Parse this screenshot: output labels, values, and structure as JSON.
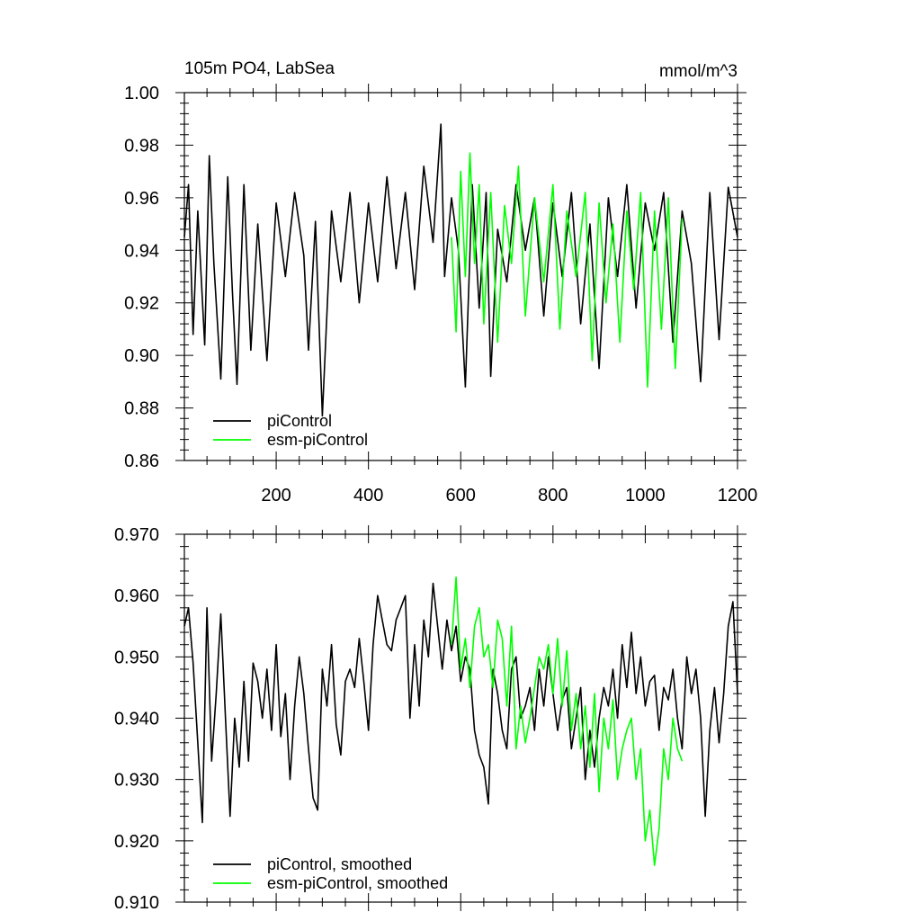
{
  "chart_data": [
    {
      "type": "line",
      "title": "105m PO4, LabSea",
      "units": "mmol/m^3",
      "xlim": [
        1,
        1200
      ],
      "ylim": [
        0.86,
        1.0
      ],
      "x_ticks": [
        200,
        400,
        600,
        800,
        1000,
        1200
      ],
      "x_tick_labels": [
        "200",
        "400",
        "600",
        "800",
        "1000",
        "1200"
      ],
      "y_ticks": [
        0.86,
        0.88,
        0.9,
        0.92,
        0.94,
        0.96,
        0.98,
        1.0
      ],
      "y_tick_labels": [
        "0.86",
        "0.88",
        "0.90",
        "0.92",
        "0.94",
        "0.96",
        "0.98",
        "1.00"
      ],
      "grid": false,
      "legend_position": "bottom-left",
      "series": [
        {
          "name": "piControl",
          "color": "#000000",
          "x": [
            1,
            10,
            20,
            30,
            45,
            55,
            65,
            80,
            95,
            105,
            115,
            130,
            145,
            160,
            180,
            200,
            220,
            240,
            260,
            270,
            285,
            300,
            320,
            340,
            360,
            380,
            400,
            420,
            440,
            460,
            480,
            500,
            520,
            540,
            557,
            565,
            580,
            595,
            610,
            625,
            640,
            655,
            665,
            680,
            700,
            720,
            740,
            760,
            780,
            800,
            820,
            840,
            860,
            880,
            900,
            920,
            940,
            960,
            980,
            1000,
            1020,
            1040,
            1060,
            1080,
            1100,
            1120,
            1140,
            1160,
            1180,
            1200
          ],
          "y": [
            0.945,
            0.965,
            0.908,
            0.955,
            0.904,
            0.976,
            0.935,
            0.891,
            0.968,
            0.925,
            0.889,
            0.965,
            0.902,
            0.95,
            0.898,
            0.958,
            0.93,
            0.962,
            0.938,
            0.902,
            0.951,
            0.877,
            0.955,
            0.928,
            0.962,
            0.92,
            0.958,
            0.928,
            0.968,
            0.933,
            0.962,
            0.925,
            0.972,
            0.943,
            0.988,
            0.93,
            0.96,
            0.94,
            0.888,
            0.965,
            0.918,
            0.962,
            0.892,
            0.948,
            0.928,
            0.965,
            0.94,
            0.96,
            0.915,
            0.958,
            0.93,
            0.962,
            0.912,
            0.95,
            0.895,
            0.96,
            0.93,
            0.965,
            0.918,
            0.958,
            0.94,
            0.962,
            0.905,
            0.955,
            0.935,
            0.89,
            0.962,
            0.906,
            0.964,
            0.945
          ]
        },
        {
          "name": "esm-piControl",
          "color": "#00ff00",
          "x": [
            580,
            590,
            600,
            610,
            620,
            630,
            640,
            650,
            665,
            680,
            695,
            710,
            725,
            740,
            760,
            780,
            800,
            815,
            830,
            850,
            870,
            885,
            900,
            915,
            930,
            945,
            960,
            975,
            990,
            1005,
            1020,
            1035,
            1050,
            1065,
            1080
          ],
          "y": [
            0.945,
            0.909,
            0.97,
            0.93,
            0.977,
            0.935,
            0.965,
            0.912,
            0.962,
            0.905,
            0.957,
            0.935,
            0.972,
            0.915,
            0.96,
            0.928,
            0.965,
            0.91,
            0.955,
            0.93,
            0.962,
            0.898,
            0.958,
            0.92,
            0.95,
            0.905,
            0.955,
            0.925,
            0.962,
            0.888,
            0.955,
            0.91,
            0.96,
            0.895,
            0.952
          ]
        }
      ]
    },
    {
      "type": "line",
      "xlim": [
        1,
        1200
      ],
      "ylim": [
        0.91,
        0.97
      ],
      "x_ticks": [
        200,
        400,
        600,
        800,
        1000,
        1200
      ],
      "y_ticks": [
        0.91,
        0.92,
        0.93,
        0.94,
        0.95,
        0.96,
        0.97
      ],
      "y_tick_labels": [
        "0.910",
        "0.920",
        "0.930",
        "0.940",
        "0.950",
        "0.960",
        "0.970"
      ],
      "grid": false,
      "legend_position": "bottom-left",
      "series": [
        {
          "name": "piControl, smoothed",
          "color": "#000000",
          "x": [
            1,
            10,
            20,
            30,
            40,
            50,
            60,
            70,
            80,
            90,
            100,
            110,
            120,
            130,
            140,
            150,
            160,
            170,
            180,
            190,
            200,
            210,
            220,
            230,
            240,
            250,
            260,
            270,
            280,
            290,
            300,
            310,
            320,
            330,
            340,
            350,
            360,
            370,
            380,
            390,
            400,
            410,
            420,
            430,
            440,
            450,
            460,
            470,
            480,
            490,
            500,
            510,
            520,
            530,
            540,
            550,
            560,
            570,
            580,
            590,
            600,
            610,
            620,
            630,
            640,
            650,
            660,
            670,
            680,
            690,
            700,
            710,
            720,
            730,
            740,
            750,
            760,
            770,
            780,
            790,
            800,
            810,
            820,
            830,
            840,
            850,
            860,
            870,
            880,
            890,
            900,
            910,
            920,
            930,
            940,
            950,
            960,
            970,
            980,
            990,
            1000,
            1010,
            1020,
            1030,
            1040,
            1050,
            1060,
            1070,
            1080,
            1090,
            1100,
            1110,
            1120,
            1130,
            1140,
            1150,
            1160,
            1170,
            1180,
            1190,
            1200
          ],
          "y": [
            0.955,
            0.958,
            0.949,
            0.936,
            0.923,
            0.958,
            0.933,
            0.944,
            0.957,
            0.94,
            0.924,
            0.94,
            0.932,
            0.946,
            0.933,
            0.949,
            0.946,
            0.94,
            0.948,
            0.938,
            0.952,
            0.937,
            0.944,
            0.93,
            0.942,
            0.95,
            0.944,
            0.935,
            0.927,
            0.925,
            0.948,
            0.942,
            0.952,
            0.939,
            0.934,
            0.946,
            0.948,
            0.945,
            0.953,
            0.946,
            0.938,
            0.952,
            0.96,
            0.956,
            0.952,
            0.951,
            0.956,
            0.958,
            0.96,
            0.94,
            0.952,
            0.942,
            0.956,
            0.95,
            0.962,
            0.955,
            0.948,
            0.956,
            0.951,
            0.955,
            0.946,
            0.95,
            0.948,
            0.938,
            0.934,
            0.932,
            0.926,
            0.948,
            0.944,
            0.938,
            0.935,
            0.948,
            0.95,
            0.94,
            0.942,
            0.945,
            0.938,
            0.948,
            0.942,
            0.95,
            0.944,
            0.938,
            0.943,
            0.945,
            0.935,
            0.94,
            0.945,
            0.93,
            0.938,
            0.932,
            0.94,
            0.945,
            0.942,
            0.948,
            0.94,
            0.952,
            0.945,
            0.954,
            0.944,
            0.95,
            0.942,
            0.946,
            0.947,
            0.938,
            0.945,
            0.943,
            0.948,
            0.94,
            0.935,
            0.95,
            0.944,
            0.948,
            0.94,
            0.924,
            0.938,
            0.945,
            0.936,
            0.944,
            0.955,
            0.959,
            0.944
          ]
        },
        {
          "name": "esm-piControl, smoothed",
          "color": "#00ff00",
          "x": [
            580,
            590,
            600,
            610,
            620,
            630,
            640,
            650,
            660,
            670,
            680,
            690,
            700,
            710,
            720,
            730,
            740,
            750,
            760,
            770,
            780,
            790,
            800,
            810,
            820,
            830,
            840,
            850,
            860,
            870,
            880,
            890,
            900,
            910,
            920,
            930,
            940,
            950,
            960,
            970,
            980,
            990,
            1000,
            1010,
            1020,
            1030,
            1040,
            1050,
            1060,
            1070,
            1080
          ],
          "y": [
            0.952,
            0.963,
            0.948,
            0.953,
            0.945,
            0.955,
            0.958,
            0.95,
            0.952,
            0.945,
            0.956,
            0.953,
            0.942,
            0.955,
            0.935,
            0.942,
            0.936,
            0.94,
            0.945,
            0.95,
            0.948,
            0.952,
            0.944,
            0.953,
            0.942,
            0.951,
            0.938,
            0.944,
            0.935,
            0.942,
            0.932,
            0.944,
            0.928,
            0.94,
            0.935,
            0.943,
            0.93,
            0.935,
            0.938,
            0.94,
            0.93,
            0.935,
            0.92,
            0.925,
            0.916,
            0.922,
            0.935,
            0.93,
            0.94,
            0.935,
            0.933
          ]
        }
      ]
    }
  ]
}
